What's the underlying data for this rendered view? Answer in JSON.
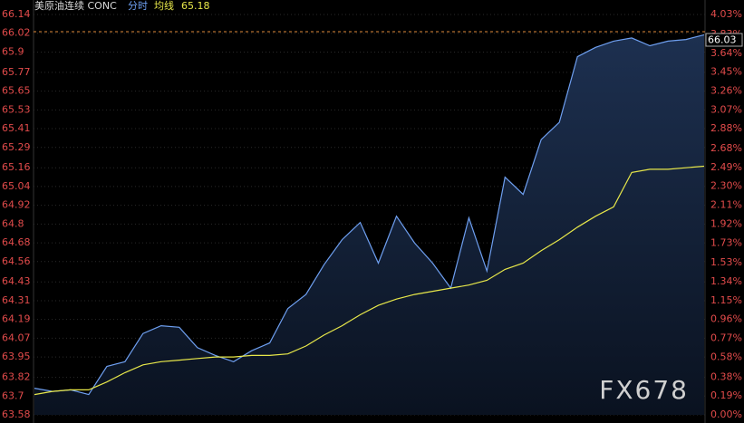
{
  "chart_data": {
    "type": "line",
    "header": {
      "symbol": "美原油连续 CONC",
      "value": 65.18
    },
    "series": [
      {
        "name": "分时",
        "color": "#6e9ff0",
        "values": [
          63.75,
          63.73,
          63.74,
          63.71,
          63.89,
          63.92,
          64.1,
          64.15,
          64.14,
          64.01,
          63.96,
          63.92,
          63.99,
          64.04,
          64.26,
          64.35,
          64.54,
          64.7,
          64.81,
          64.55,
          64.85,
          64.68,
          64.55,
          64.39,
          64.84,
          64.5,
          65.1,
          64.99,
          65.34,
          65.45,
          65.87,
          65.93,
          65.97,
          65.99,
          65.94,
          65.97,
          65.98,
          66.01
        ]
      },
      {
        "name": "均线",
        "color": "#e8e84a",
        "values": [
          63.71,
          63.73,
          63.74,
          63.74,
          63.79,
          63.85,
          63.9,
          63.92,
          63.93,
          63.94,
          63.95,
          63.95,
          63.96,
          63.96,
          63.97,
          64.02,
          64.09,
          64.15,
          64.22,
          64.28,
          64.32,
          64.35,
          64.37,
          64.39,
          64.41,
          64.44,
          64.51,
          64.55,
          64.63,
          64.7,
          64.78,
          64.85,
          64.91,
          65.13,
          65.15,
          65.15,
          65.16,
          65.17
        ]
      }
    ],
    "last_price": 66.03,
    "ylim": [
      63.58,
      66.14
    ],
    "yticks": [
      66.14,
      66.02,
      65.9,
      65.77,
      65.65,
      65.53,
      65.41,
      65.29,
      65.16,
      65.04,
      64.92,
      64.8,
      64.68,
      64.56,
      64.43,
      64.31,
      64.19,
      64.07,
      63.95,
      63.82,
      63.7,
      63.58
    ],
    "y2lim": [
      0,
      4.03
    ],
    "y2ticks": [
      {
        "value": 4.03,
        "label": "4.03%"
      },
      {
        "value": 3.83,
        "label": "3.83%"
      },
      {
        "value": 3.64,
        "label": "3.64%"
      },
      {
        "value": 3.45,
        "label": "3.45%"
      },
      {
        "value": 3.26,
        "label": "3.26%"
      },
      {
        "value": 3.07,
        "label": "3.07%"
      },
      {
        "value": 2.88,
        "label": "2.88%"
      },
      {
        "value": 2.68,
        "label": "2.68%"
      },
      {
        "value": 2.49,
        "label": "2.49%"
      },
      {
        "value": 2.3,
        "label": "2.30%"
      },
      {
        "value": 2.11,
        "label": "2.11%"
      },
      {
        "value": 1.92,
        "label": "1.92%"
      },
      {
        "value": 1.73,
        "label": "1.73%"
      },
      {
        "value": 1.53,
        "label": "1.53%"
      },
      {
        "value": 1.34,
        "label": "1.34%"
      },
      {
        "value": 1.15,
        "label": "1.15%"
      },
      {
        "value": 0.96,
        "label": "0.96%"
      },
      {
        "value": 0.77,
        "label": "0.77%"
      },
      {
        "value": 0.58,
        "label": "0.58%"
      },
      {
        "value": 0.38,
        "label": "0.38%"
      },
      {
        "value": 0.19,
        "label": "0.19%"
      },
      {
        "value": 0.0,
        "label": "0.00%"
      }
    ],
    "grid": true,
    "watermark": "FX678"
  }
}
